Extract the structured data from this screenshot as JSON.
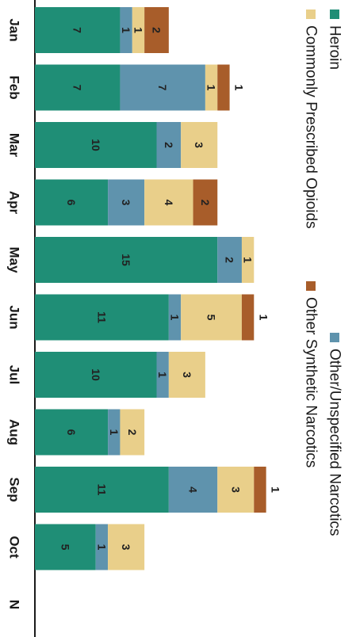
{
  "chart_data": {
    "type": "bar",
    "stacked": true,
    "orientation": "vertical (figure rotated 90 degrees clockwise)",
    "categories": [
      "Jan",
      "Feb",
      "Mar",
      "Apr",
      "May",
      "Jun",
      "Jul",
      "Aug",
      "Sep",
      "Oct",
      "N"
    ],
    "series": [
      {
        "name": "Heroin",
        "color": "#1f8e76",
        "values": [
          7,
          7,
          10,
          6,
          15,
          11,
          10,
          6,
          11,
          5,
          null
        ]
      },
      {
        "name": "Other/Unspecified Narcotics",
        "color": "#5f93ad",
        "values": [
          1,
          7,
          2,
          3,
          2,
          1,
          1,
          1,
          4,
          1,
          null
        ]
      },
      {
        "name": "Commonly Prescribed Opioids",
        "color": "#e9cf8a",
        "values": [
          1,
          1,
          3,
          4,
          1,
          5,
          3,
          2,
          3,
          3,
          null
        ]
      },
      {
        "name": "Other Synthetic Narcotics",
        "color": "#a85d2a",
        "values": [
          2,
          1,
          0,
          2,
          0,
          1,
          0,
          0,
          1,
          0,
          null
        ]
      }
    ],
    "data_labels": [
      [
        "7",
        "1",
        "1",
        "2"
      ],
      [
        "7",
        "7",
        "1",
        "1"
      ],
      [
        "10",
        "2",
        "3",
        ""
      ],
      [
        "6",
        "3",
        "4",
        "2"
      ],
      [
        "15",
        "2",
        "1",
        ""
      ],
      [
        "11",
        "1",
        "5",
        "1"
      ],
      [
        "10",
        "1",
        "3",
        ""
      ],
      [
        "6",
        "1",
        "2",
        ""
      ],
      [
        "11",
        "4",
        "3",
        "1"
      ],
      [
        "5",
        "1",
        "3",
        ""
      ],
      [
        "",
        "",
        "",
        ""
      ]
    ],
    "yticks": [
      "0",
      "2",
      "4",
      "6",
      "8",
      "10",
      "12",
      "14",
      "16",
      "18",
      "20"
    ],
    "ylim": [
      0,
      20
    ],
    "legend_position": "top (right side of rotated page)",
    "grid": false
  }
}
